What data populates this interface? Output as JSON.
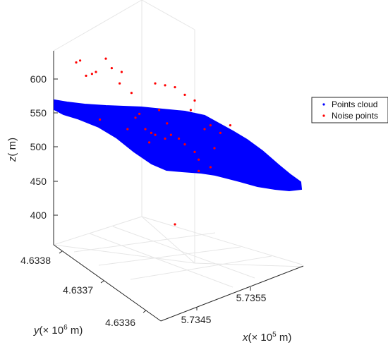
{
  "chart_data": {
    "type": "scatter",
    "projection": "3d",
    "title": "",
    "axes": {
      "x": {
        "label_var": "x",
        "label_unit": "(× 10",
        "label_exp": "5",
        "label_tail": " m)",
        "ticks": [
          "5.7345",
          "5.7355"
        ]
      },
      "y": {
        "label_var": "y",
        "label_unit": "(× 10",
        "label_exp": "6",
        "label_tail": " m)",
        "ticks": [
          "4.6336",
          "4.6337",
          "4.6338"
        ]
      },
      "z": {
        "label_var": "z",
        "label_unit": "( m)",
        "ticks": [
          "400",
          "450",
          "500",
          "550",
          "600"
        ],
        "tick_values": [
          400,
          450,
          500,
          550,
          600
        ],
        "range": [
          355,
          640
        ]
      }
    },
    "grid": true,
    "legend": {
      "placement": "right",
      "entries": [
        "Points cloud",
        "Noise points"
      ]
    },
    "colors": {
      "points": "#0000ff",
      "noise": "#ff0000",
      "axis": "#262626",
      "grid": "#e6e6e6"
    },
    "series": [
      {
        "name": "Points cloud",
        "description_of_extent": "dense band",
        "outline_upper": [
          [
            0,
            0.93
          ],
          [
            0.1,
            0.9
          ],
          [
            0.25,
            0.83
          ],
          [
            0.4,
            0.78
          ],
          [
            0.55,
            0.75
          ],
          [
            0.65,
            0.73
          ],
          [
            0.75,
            0.65
          ],
          [
            0.85,
            0.55
          ],
          [
            0.95,
            0.43
          ],
          [
            1,
            0.37
          ]
        ],
        "outline_lower": [
          [
            0,
            0.88
          ],
          [
            0.2,
            0.73
          ],
          [
            0.4,
            0.52
          ],
          [
            0.55,
            0.44
          ],
          [
            0.65,
            0.4
          ],
          [
            0.8,
            0.37
          ],
          [
            0.92,
            0.33
          ],
          [
            1,
            0.3
          ]
        ]
      },
      {
        "name": "Noise points",
        "points": [
          [
            0.1,
            0.95
          ],
          [
            0.12,
            0.96
          ],
          [
            0.15,
            0.88
          ],
          [
            0.22,
            0.65
          ],
          [
            0.18,
            0.89
          ],
          [
            0.2,
            0.9
          ],
          [
            0.25,
            0.97
          ],
          [
            0.28,
            0.92
          ],
          [
            0.32,
            0.84
          ],
          [
            0.38,
            0.79
          ],
          [
            0.33,
            0.9
          ],
          [
            0.5,
            0.84
          ],
          [
            0.55,
            0.83
          ],
          [
            0.6,
            0.82
          ],
          [
            0.65,
            0.78
          ],
          [
            0.7,
            0.75
          ],
          [
            0.45,
            0.6
          ],
          [
            0.48,
            0.58
          ],
          [
            0.5,
            0.57
          ],
          [
            0.55,
            0.55
          ],
          [
            0.58,
            0.57
          ],
          [
            0.62,
            0.55
          ],
          [
            0.65,
            0.52
          ],
          [
            0.7,
            0.48
          ],
          [
            0.72,
            0.44
          ],
          [
            0.78,
            0.4
          ],
          [
            0.8,
            0.5
          ],
          [
            0.72,
            0.38
          ],
          [
            0.75,
            0.6
          ],
          [
            0.68,
            0.7
          ],
          [
            0.4,
            0.66
          ],
          [
            0.36,
            0.6
          ],
          [
            0.42,
            0.68
          ],
          [
            0.52,
            0.7
          ],
          [
            0.6,
            0.1
          ],
          [
            0.78,
            0.62
          ],
          [
            0.83,
            0.58
          ],
          [
            0.88,
            0.62
          ],
          [
            0.56,
            0.63
          ],
          [
            0.47,
            0.53
          ]
        ]
      }
    ]
  }
}
